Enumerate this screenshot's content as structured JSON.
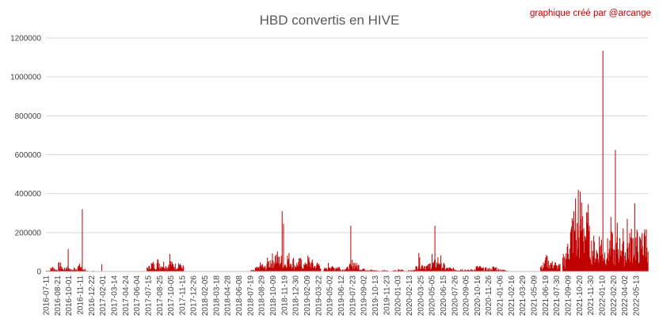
{
  "chart_data": {
    "type": "bar",
    "title": "HBD convertis en HIVE",
    "annotation": "graphique créé par @arcange",
    "xlabel": "",
    "ylabel": "",
    "ylim": [
      0,
      1200000
    ],
    "yticks": [
      0,
      200000,
      400000,
      600000,
      800000,
      1000000,
      1200000
    ],
    "grid": true,
    "legend": "none",
    "bar_color": "#c00000",
    "x_range": [
      "2016-07-11",
      "2022-06-25"
    ],
    "x_tick_labels": [
      "2016-07-11",
      "2016-08-21",
      "2016-10-01",
      "2016-11-11",
      "2016-12-22",
      "2017-02-01",
      "2017-03-14",
      "2017-04-24",
      "2017-06-04",
      "2017-07-15",
      "2017-08-25",
      "2017-10-05",
      "2017-11-15",
      "2017-12-26",
      "2018-02-05",
      "2018-03-18",
      "2018-04-28",
      "2018-06-08",
      "2018-07-19",
      "2018-08-29",
      "2018-10-09",
      "2018-11-19",
      "2018-12-30",
      "2019-02-09",
      "2019-03-22",
      "2019-05-02",
      "2019-06-12",
      "2019-07-23",
      "2019-09-02",
      "2019-10-13",
      "2019-11-23",
      "2020-01-03",
      "2020-02-13",
      "2020-03-25",
      "2020-05-05",
      "2020-06-15",
      "2020-07-26",
      "2020-09-05",
      "2020-10-16",
      "2020-11-26",
      "2021-01-06",
      "2021-02-16",
      "2021-03-29",
      "2021-05-09",
      "2021-06-19",
      "2021-07-30",
      "2021-09-09",
      "2021-10-20",
      "2021-11-30",
      "2022-01-10",
      "2022-02-20",
      "2022-04-02",
      "2022-05-13"
    ],
    "series": [
      {
        "values": [
          {
            "start": "2016-07-11",
            "end": "2016-11-30",
            "base": [
              4000,
              18000,
              9000,
              30000,
              12000,
              22000,
              8000,
              15000,
              26000,
              11000
            ]
          },
          {
            "start": "2016-12-01",
            "end": "2017-01-20",
            "base": [
              2000,
              0,
              0,
              3000,
              0,
              0,
              1000
            ]
          },
          {
            "start": "2017-07-10",
            "end": "2017-11-20",
            "base": [
              20000,
              35000,
              28000,
              45000,
              30000,
              38000,
              25000,
              42000,
              33000,
              28000,
              40000,
              22000
            ]
          },
          {
            "start": "2018-07-20",
            "end": "2019-03-30",
            "base": [
              5000,
              15000,
              30000,
              20000,
              45000,
              60000,
              70000,
              55000,
              40000,
              65000,
              50000,
              35000,
              45000,
              30000,
              55000,
              40000,
              28000,
              36000
            ]
          },
          {
            "start": "2019-04-10",
            "end": "2019-09-30",
            "base": [
              12000,
              30000,
              18000,
              22000,
              10000,
              16000,
              25000,
              40000,
              28000,
              14000,
              10000,
              8000
            ]
          },
          {
            "start": "2019-10-01",
            "end": "2020-02-28",
            "base": [
              5000,
              3000,
              6000,
              2000,
              4000,
              7000,
              3000,
              5000
            ]
          },
          {
            "start": "2020-03-01",
            "end": "2020-06-20",
            "base": [
              20000,
              45000,
              30000,
              25000,
              35000,
              40000,
              55000,
              28000
            ]
          },
          {
            "start": "2020-06-21",
            "end": "2021-01-31",
            "base": [
              15000,
              12000,
              8000,
              10000,
              6000,
              9000,
              20000,
              14000,
              12000,
              18000,
              10000,
              7000
            ]
          },
          {
            "start": "2021-06-01",
            "end": "2021-08-10",
            "base": [
              30000,
              50000,
              40000,
              35000,
              25000
            ]
          },
          {
            "start": "2021-08-20",
            "end": "2021-10-10",
            "base": [
              60000,
              90000,
              140000,
              180000,
              220000,
              160000
            ]
          },
          {
            "start": "2021-10-11",
            "end": "2022-06-25",
            "base": [
              180000,
              260000,
              200000,
              150000,
              120000,
              100000,
              140000,
              90000,
              110000,
              130000,
              95000,
              120000,
              150000,
              100000,
              130000,
              160000,
              140000,
              120000,
              150000,
              170000
            ]
          }
        ],
        "spikes": [
          {
            "date": "2016-09-28",
            "value": 115000
          },
          {
            "date": "2016-11-18",
            "value": 320000
          },
          {
            "date": "2017-01-27",
            "value": 38000
          },
          {
            "date": "2017-09-30",
            "value": 90000
          },
          {
            "date": "2018-11-10",
            "value": 310000
          },
          {
            "date": "2018-11-15",
            "value": 245000
          },
          {
            "date": "2019-07-16",
            "value": 235000
          },
          {
            "date": "2020-05-15",
            "value": 235000
          },
          {
            "date": "2020-05-05",
            "value": 90000
          },
          {
            "date": "2020-03-18",
            "value": 95000
          },
          {
            "date": "2021-06-22",
            "value": 85000
          },
          {
            "date": "2021-10-05",
            "value": 375000
          },
          {
            "date": "2021-10-15",
            "value": 420000
          },
          {
            "date": "2021-10-22",
            "value": 410000
          },
          {
            "date": "2021-11-20",
            "value": 345000
          },
          {
            "date": "2022-01-12",
            "value": 1135000
          },
          {
            "date": "2022-02-10",
            "value": 280000
          },
          {
            "date": "2022-02-26",
            "value": 625000
          },
          {
            "date": "2022-03-05",
            "value": 250000
          },
          {
            "date": "2022-05-07",
            "value": 350000
          },
          {
            "date": "2022-04-10",
            "value": 270000
          },
          {
            "date": "2022-06-10",
            "value": 195000
          }
        ]
      }
    ]
  }
}
